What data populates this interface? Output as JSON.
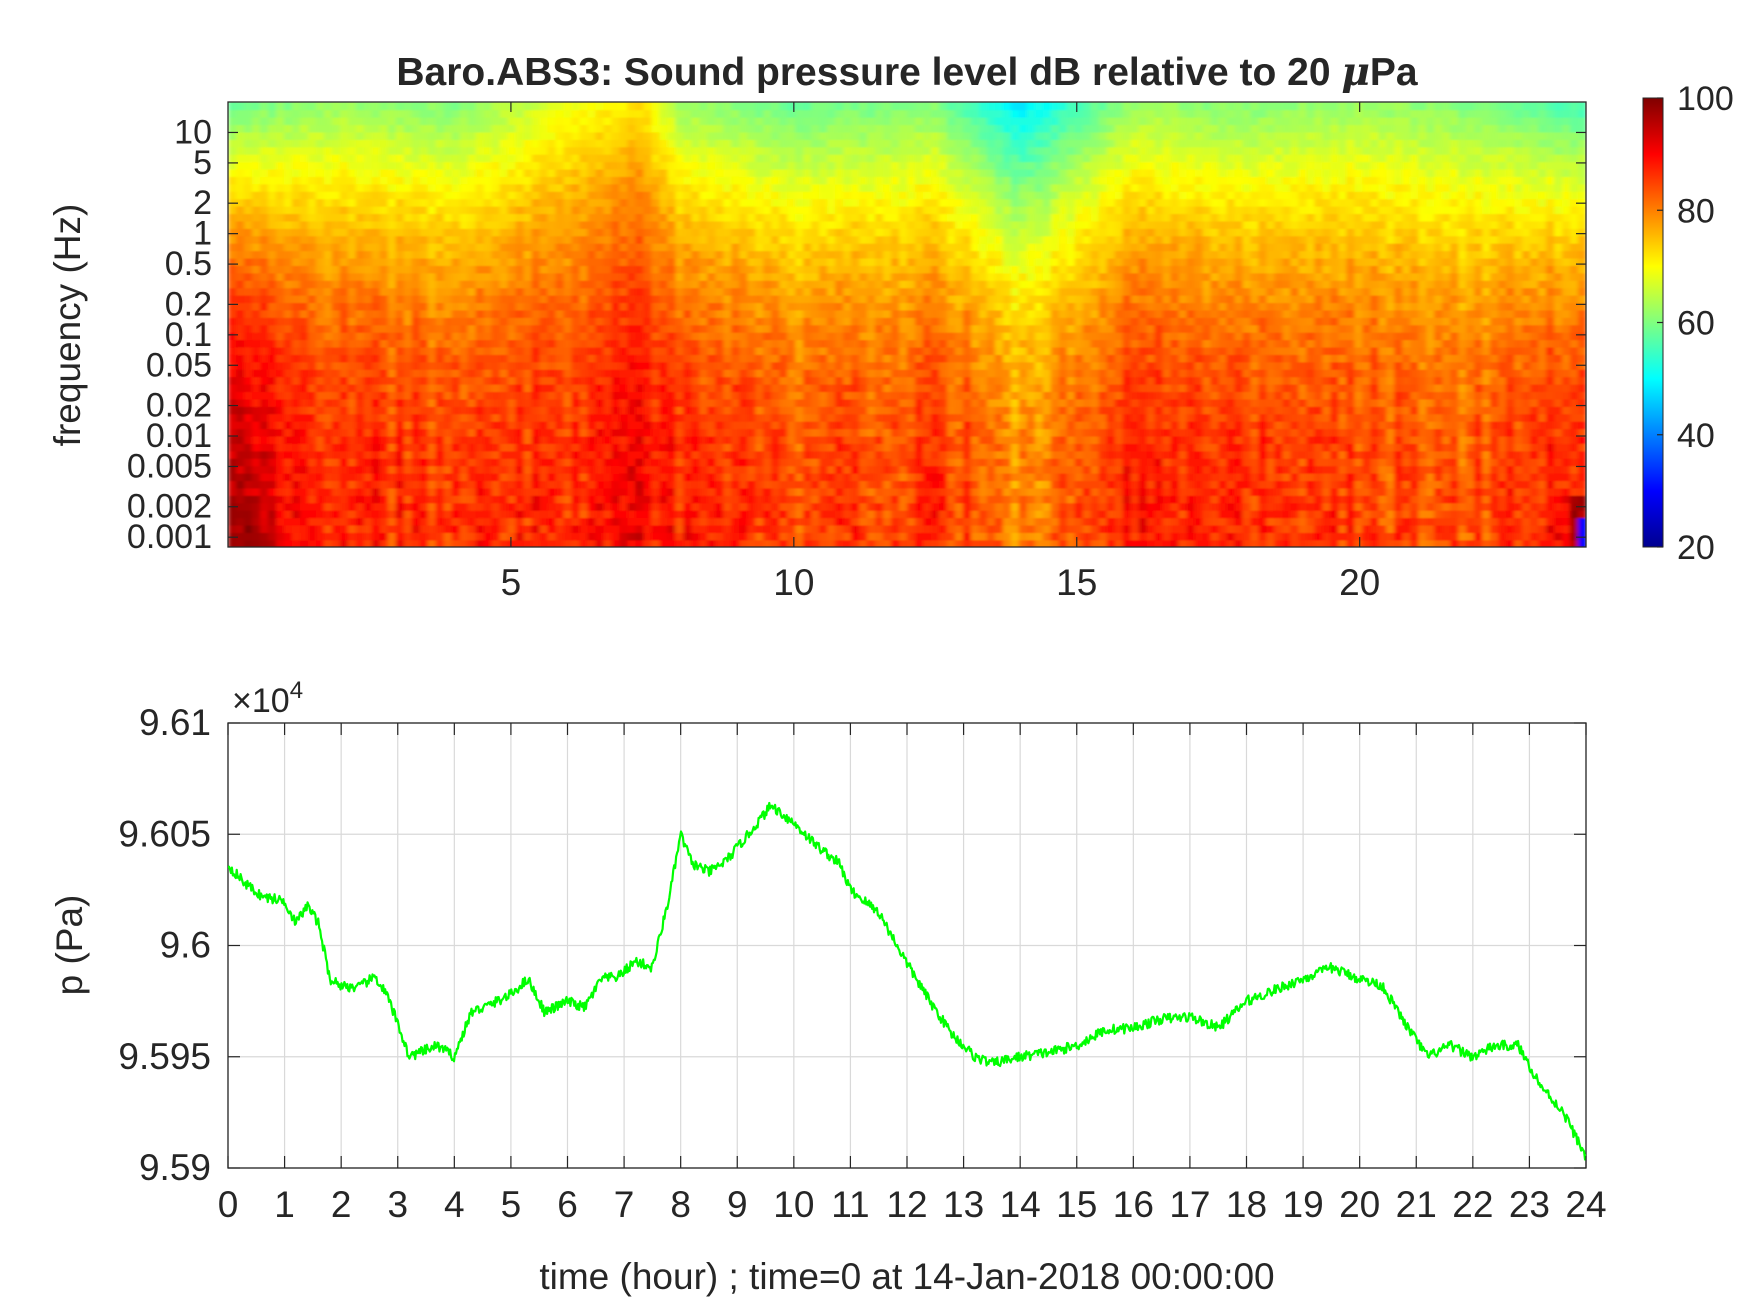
{
  "chart_data": [
    {
      "type": "heatmap",
      "title": "Baro.ABS3: Sound pressure level dB relative to 20 μPa",
      "title_prefix": "Baro.ABS3: Sound pressure level dB relative to 20 ",
      "title_mu": "μ",
      "title_suffix": "Pa",
      "ylabel": "frequency (Hz)",
      "yscale": "log",
      "ylim": [
        0.0008,
        20
      ],
      "xlim": [
        0,
        24
      ],
      "yticks": [
        {
          "value": 0.001,
          "label": "0.001"
        },
        {
          "value": 0.002,
          "label": "0.002"
        },
        {
          "value": 0.005,
          "label": "0.005"
        },
        {
          "value": 0.01,
          "label": "0.01"
        },
        {
          "value": 0.02,
          "label": "0.02"
        },
        {
          "value": 0.05,
          "label": "0.05"
        },
        {
          "value": 0.1,
          "label": "0.1"
        },
        {
          "value": 0.2,
          "label": "0.2"
        },
        {
          "value": 0.5,
          "label": "0.5"
        },
        {
          "value": 1,
          "label": "1"
        },
        {
          "value": 2,
          "label": "2"
        },
        {
          "value": 5,
          "label": "5"
        },
        {
          "value": 10,
          "label": "10"
        }
      ],
      "xticks": [
        {
          "value": 5,
          "label": "5"
        },
        {
          "value": 10,
          "label": "10"
        },
        {
          "value": 15,
          "label": "15"
        },
        {
          "value": 20,
          "label": "20"
        }
      ],
      "colormap": "jet",
      "colorbar": {
        "clim": [
          20,
          100
        ],
        "ticks": [
          {
            "value": 20,
            "label": "20"
          },
          {
            "value": 40,
            "label": "40"
          },
          {
            "value": 60,
            "label": "60"
          },
          {
            "value": 80,
            "label": "80"
          },
          {
            "value": 100,
            "label": "100"
          }
        ]
      },
      "intensity_profile": {
        "description_units": "dB",
        "time_hours": [
          0,
          2,
          4,
          6,
          7.3,
          8,
          10,
          12.5,
          13.5,
          14,
          16,
          18,
          20,
          22,
          24
        ],
        "low_freq_level_db": [
          95,
          88,
          86,
          87,
          90,
          87,
          85,
          86,
          84,
          80,
          88,
          86,
          85,
          84,
          90
        ],
        "high_freq_level_db": [
          58,
          62,
          60,
          68,
          72,
          62,
          58,
          60,
          52,
          48,
          62,
          60,
          62,
          60,
          55
        ],
        "grid": false
      }
    },
    {
      "type": "line",
      "ylabel": "p (Pa)",
      "xlabel": "time (hour) ; time=0 at 14-Jan-2018 00:00:00",
      "exponent_base": "×10",
      "exponent_power": "4",
      "xlim": [
        0,
        24
      ],
      "ylim": [
        95900,
        96100
      ],
      "grid": true,
      "line_color": "#00ff00",
      "yticks": [
        {
          "value": 95900,
          "label": "9.59"
        },
        {
          "value": 95950,
          "label": "9.595"
        },
        {
          "value": 96000,
          "label": "9.6"
        },
        {
          "value": 96050,
          "label": "9.605"
        },
        {
          "value": 96100,
          "label": "9.61"
        }
      ],
      "xticks": [
        {
          "value": 0,
          "label": "0"
        },
        {
          "value": 1,
          "label": "1"
        },
        {
          "value": 2,
          "label": "2"
        },
        {
          "value": 3,
          "label": "3"
        },
        {
          "value": 4,
          "label": "4"
        },
        {
          "value": 5,
          "label": "5"
        },
        {
          "value": 6,
          "label": "6"
        },
        {
          "value": 7,
          "label": "7"
        },
        {
          "value": 8,
          "label": "8"
        },
        {
          "value": 9,
          "label": "9"
        },
        {
          "value": 10,
          "label": "10"
        },
        {
          "value": 11,
          "label": "11"
        },
        {
          "value": 12,
          "label": "12"
        },
        {
          "value": 13,
          "label": "13"
        },
        {
          "value": 14,
          "label": "14"
        },
        {
          "value": 15,
          "label": "15"
        },
        {
          "value": 16,
          "label": "16"
        },
        {
          "value": 17,
          "label": "17"
        },
        {
          "value": 18,
          "label": "18"
        },
        {
          "value": 19,
          "label": "19"
        },
        {
          "value": 20,
          "label": "20"
        },
        {
          "value": 21,
          "label": "21"
        },
        {
          "value": 22,
          "label": "22"
        },
        {
          "value": 23,
          "label": "23"
        },
        {
          "value": 24,
          "label": "24"
        }
      ],
      "series": [
        {
          "x": [
            0,
            0.3,
            0.6,
            1.0,
            1.2,
            1.4,
            1.6,
            1.8,
            2.0,
            2.3,
            2.6,
            2.8,
            3.0,
            3.2,
            3.4,
            3.7,
            4.0,
            4.3,
            4.6,
            5.0,
            5.3,
            5.6,
            6.0,
            6.3,
            6.6,
            6.9,
            7.2,
            7.5,
            7.8,
            8.0,
            8.2,
            8.5,
            8.8,
            9.2,
            9.6,
            10.0,
            10.4,
            10.8,
            11.0,
            11.5,
            12.0,
            12.4,
            12.8,
            13.2,
            13.5,
            14.0,
            14.5,
            15.0,
            15.5,
            16.0,
            16.5,
            17.0,
            17.5,
            18.0,
            18.5,
            19.0,
            19.5,
            20.0,
            20.4,
            20.8,
            21.2,
            21.6,
            22.0,
            22.4,
            22.8,
            23.2,
            23.6,
            24.0
          ],
          "y": [
            96036,
            96028,
            96022,
            96020,
            96010,
            96018,
            96010,
            95985,
            95982,
            95981,
            95986,
            95978,
            95965,
            95950,
            95952,
            95955,
            95950,
            95970,
            95973,
            95978,
            95985,
            95970,
            95975,
            95972,
            95985,
            95986,
            95993,
            95990,
            96022,
            96050,
            96037,
            96033,
            96038,
            96050,
            96063,
            96055,
            96045,
            96037,
            96025,
            96015,
            95992,
            95975,
            95960,
            95950,
            95947,
            95950,
            95952,
            95955,
            95962,
            95963,
            95967,
            95968,
            95963,
            95975,
            95980,
            95985,
            95990,
            95985,
            95982,
            95965,
            95950,
            95955,
            95950,
            95955,
            95955,
            95937,
            95925,
            95905
          ]
        }
      ]
    }
  ]
}
